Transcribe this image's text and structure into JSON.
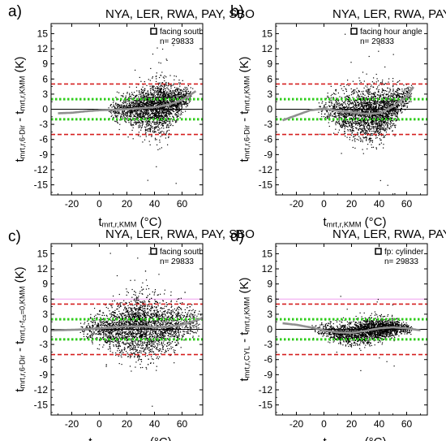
{
  "figure": {
    "panels": [
      {
        "panel_label": "a)",
        "stations_title": "NYA, LER, RWA, PAY, SBO",
        "legend_label": "facing south",
        "n_label": "n= 29833",
        "ylabel_parts": [
          [
            "t",
            "n"
          ],
          [
            "mrt,r,6-Dir",
            "s"
          ],
          [
            " - t",
            "n"
          ],
          [
            "mrt,r,KMM",
            "s"
          ],
          [
            " (K)",
            "n"
          ]
        ],
        "xlabel_parts": [
          [
            "t",
            "n"
          ],
          [
            "mrt,r,KMM",
            "s"
          ],
          [
            " (°C)",
            "n"
          ]
        ]
      },
      {
        "panel_label": "b)",
        "stations_title": "NYA, LER, RWA, PAY, SBO",
        "legend_label": "facing hour angle",
        "n_label": "n= 29833",
        "ylabel_parts": [
          [
            "t",
            "n"
          ],
          [
            "mrt,r,6-Dir",
            "s"
          ],
          [
            " - t",
            "n"
          ],
          [
            "mrt,r,KMM",
            "s"
          ],
          [
            " (K)",
            "n"
          ]
        ],
        "xlabel_parts": [
          [
            "t",
            "n"
          ],
          [
            "mrt,r,KMM",
            "s"
          ],
          [
            " (°C)",
            "n"
          ]
        ]
      },
      {
        "panel_label": "c)",
        "stations_title": "NYA, LER, RWA, PAY, SBO",
        "legend_label": "facing south",
        "n_label": "n= 29833",
        "ylabel_parts": [
          [
            "t",
            "n"
          ],
          [
            "mrt,r,6-Dir",
            "s"
          ],
          [
            " - t",
            "n"
          ],
          [
            "mrt,r-f",
            "s"
          ],
          [
            "cs",
            "ss"
          ],
          [
            "=0,KMM",
            "s"
          ],
          [
            " (K)",
            "n"
          ]
        ],
        "xlabel_parts": [
          [
            "t",
            "n"
          ],
          [
            "mrt,r-f",
            "s"
          ],
          [
            "cs",
            "ss"
          ],
          [
            "=0,KMM",
            "s"
          ],
          [
            " (°C)",
            "n"
          ]
        ]
      },
      {
        "panel_label": "d)",
        "stations_title": "NYA, LER, RWA, PAY, SBO",
        "legend_label": "fp: cylinder",
        "n_label": "n= 29833",
        "ylabel_parts": [
          [
            "t",
            "n"
          ],
          [
            "mrt,r,CYL",
            "s"
          ],
          [
            " - t",
            "n"
          ],
          [
            "mrt,r,KMM",
            "s"
          ],
          [
            " (K)",
            "n"
          ]
        ],
        "xlabel_parts": [
          [
            "t",
            "n"
          ],
          [
            "mrt,r,KMM",
            "s"
          ],
          [
            " (°C)",
            "n"
          ]
        ]
      }
    ]
  },
  "chart_data": [
    {
      "type": "scatter",
      "panel": "a",
      "xlim": [
        -35,
        75
      ],
      "ylim": [
        -17,
        17
      ],
      "x_ticks": [
        -20,
        0,
        20,
        40,
        60
      ],
      "y_ticks": [
        -15,
        -12,
        -9,
        -6,
        -3,
        0,
        3,
        6,
        9,
        12,
        15
      ],
      "n": 29833,
      "reference_lines": {
        "zero": 0,
        "green_dotted": [
          2,
          -2
        ],
        "red_dashed": [
          5,
          -5
        ],
        "pink_solid": []
      },
      "point_cloud": {
        "x_min": 5,
        "x_max": 68,
        "x_peak": 45,
        "points": 2400,
        "spread": [
          [
            5,
            0.8
          ],
          [
            20,
            1.4
          ],
          [
            30,
            2.0
          ],
          [
            40,
            2.5
          ],
          [
            50,
            2.4
          ],
          [
            60,
            1.2
          ],
          [
            68,
            0.8
          ]
        ]
      },
      "fit_curve": {
        "x": [
          -30,
          -20,
          -10,
          0,
          10,
          20,
          30,
          40,
          50,
          60,
          70
        ],
        "y": [
          -0.8,
          -0.7,
          -0.4,
          -0.2,
          -0.1,
          0,
          0.2,
          0.4,
          0.9,
          1.8,
          3.6
        ]
      }
    },
    {
      "type": "scatter",
      "panel": "b",
      "xlim": [
        -35,
        75
      ],
      "ylim": [
        -17,
        17
      ],
      "x_ticks": [
        -20,
        0,
        20,
        40,
        60
      ],
      "y_ticks": [
        -15,
        -12,
        -9,
        -6,
        -3,
        0,
        3,
        6,
        9,
        12,
        15
      ],
      "n": 29833,
      "reference_lines": {
        "zero": 0,
        "green_dotted": [
          2,
          -2
        ],
        "red_dashed": [
          5,
          -5
        ],
        "pink_solid": []
      },
      "point_cloud": {
        "x_min": -5,
        "x_max": 65,
        "x_peak": 40,
        "points": 2400,
        "spread": [
          [
            -5,
            0.8
          ],
          [
            10,
            2.0
          ],
          [
            25,
            2.6
          ],
          [
            40,
            2.6
          ],
          [
            50,
            2.0
          ],
          [
            60,
            1.2
          ],
          [
            65,
            0.8
          ]
        ]
      },
      "fit_curve": {
        "x": [
          -30,
          -20,
          -10,
          0,
          10,
          20,
          30,
          40,
          50,
          60,
          65
        ],
        "y": [
          -2.2,
          -1.2,
          -0.2,
          0.1,
          -0.3,
          -0.6,
          -0.9,
          -0.8,
          0.5,
          2.6,
          4.4
        ]
      }
    },
    {
      "type": "scatter",
      "panel": "c",
      "xlim": [
        -35,
        75
      ],
      "ylim": [
        -17,
        17
      ],
      "x_ticks": [
        -20,
        0,
        20,
        40,
        60
      ],
      "y_ticks": [
        -15,
        -12,
        -9,
        -6,
        -3,
        0,
        3,
        6,
        9,
        12,
        15
      ],
      "n": 29833,
      "reference_lines": {
        "zero": 0,
        "green_dotted": [
          2,
          -2
        ],
        "red_dashed": [
          5,
          -5
        ],
        "pink_solid": [
          6
        ]
      },
      "point_cloud": {
        "x_min": -15,
        "x_max": 75,
        "x_peak": 30,
        "points": 2800,
        "spread": [
          [
            -15,
            0.8
          ],
          [
            0,
            1.6
          ],
          [
            15,
            2.6
          ],
          [
            30,
            3.2
          ],
          [
            45,
            2.8
          ],
          [
            60,
            2.0
          ],
          [
            75,
            1.4
          ]
        ]
      },
      "fit_curve": {
        "x": [
          -35,
          -20,
          -10,
          0,
          10,
          20,
          30,
          40,
          50,
          60,
          75
        ],
        "y": [
          -0.2,
          -0.1,
          0,
          0.2,
          0.4,
          0.6,
          0.6,
          0.4,
          0.5,
          0.9,
          2.2
        ]
      }
    },
    {
      "type": "scatter",
      "panel": "d",
      "xlim": [
        -35,
        75
      ],
      "ylim": [
        -17,
        17
      ],
      "x_ticks": [
        -20,
        0,
        20,
        40,
        60
      ],
      "y_ticks": [
        -15,
        -12,
        -9,
        -6,
        -3,
        0,
        3,
        6,
        9,
        12,
        15
      ],
      "n": 29833,
      "reference_lines": {
        "zero": 0,
        "green_dotted": [
          2,
          -2
        ],
        "red_dashed": [
          5,
          -5
        ],
        "pink_solid": [
          6
        ]
      },
      "point_cloud": {
        "x_min": -10,
        "x_max": 65,
        "x_peak": 40,
        "points": 2200,
        "spread": [
          [
            -10,
            0.3
          ],
          [
            5,
            0.9
          ],
          [
            20,
            1.2
          ],
          [
            35,
            1.2
          ],
          [
            45,
            1.0
          ],
          [
            55,
            0.7
          ],
          [
            65,
            0.4
          ]
        ]
      },
      "fit_curve": {
        "x": [
          -30,
          -20,
          -10,
          0,
          10,
          20,
          30,
          40,
          50,
          60,
          70
        ],
        "y": [
          1.2,
          0.9,
          0.4,
          -0.2,
          -0.6,
          -0.7,
          -0.3,
          0.2,
          0.4,
          0.2,
          -0.2
        ]
      }
    }
  ],
  "colors": {
    "points": "#000000",
    "fit_curve": "#909090",
    "green_dotted": "#2ecc1a",
    "red_dashed": "#d62020",
    "pink_solid": "#f0a0f0",
    "axis": "#000000"
  },
  "style": {
    "has_grid": false,
    "legend_position": "top-right",
    "legend_marker": "hollow-square"
  }
}
